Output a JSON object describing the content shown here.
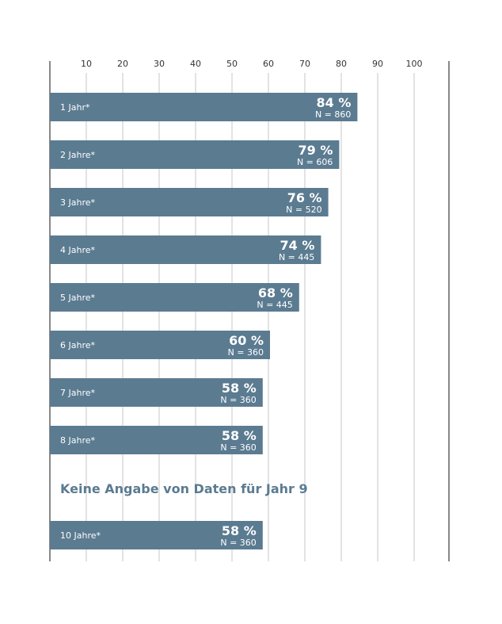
{
  "chart_data": {
    "type": "bar",
    "orientation": "horizontal",
    "xlim": [
      0,
      110
    ],
    "x_ticks": [
      "10",
      "20",
      "30",
      "40",
      "50",
      "60",
      "70",
      "80",
      "90",
      "100"
    ],
    "grid": true,
    "bar_color": "#5b7b91",
    "categories": [
      "1 Jahr*",
      "2 Jahre*",
      "3 Jahre*",
      "4 Jahre*",
      "5 Jahre*",
      "6 Jahre*",
      "7 Jahre*",
      "8 Jahre*",
      "9",
      "10 Jahre*"
    ],
    "values": [
      84,
      79,
      76,
      74,
      68,
      60,
      58,
      58,
      null,
      58
    ],
    "value_labels": [
      "84 %",
      "79 %",
      "76 %",
      "74 %",
      "68 %",
      "60 %",
      "58 %",
      "58 %",
      "",
      "58 %"
    ],
    "n_labels": [
      "N = 860",
      "N = 606",
      "N = 520",
      "N = 445",
      "N = 445",
      "N = 360",
      "N = 360",
      "N = 360",
      "",
      "N = 360"
    ],
    "missing_note": "Keine Angabe von Daten für Jahr 9"
  }
}
